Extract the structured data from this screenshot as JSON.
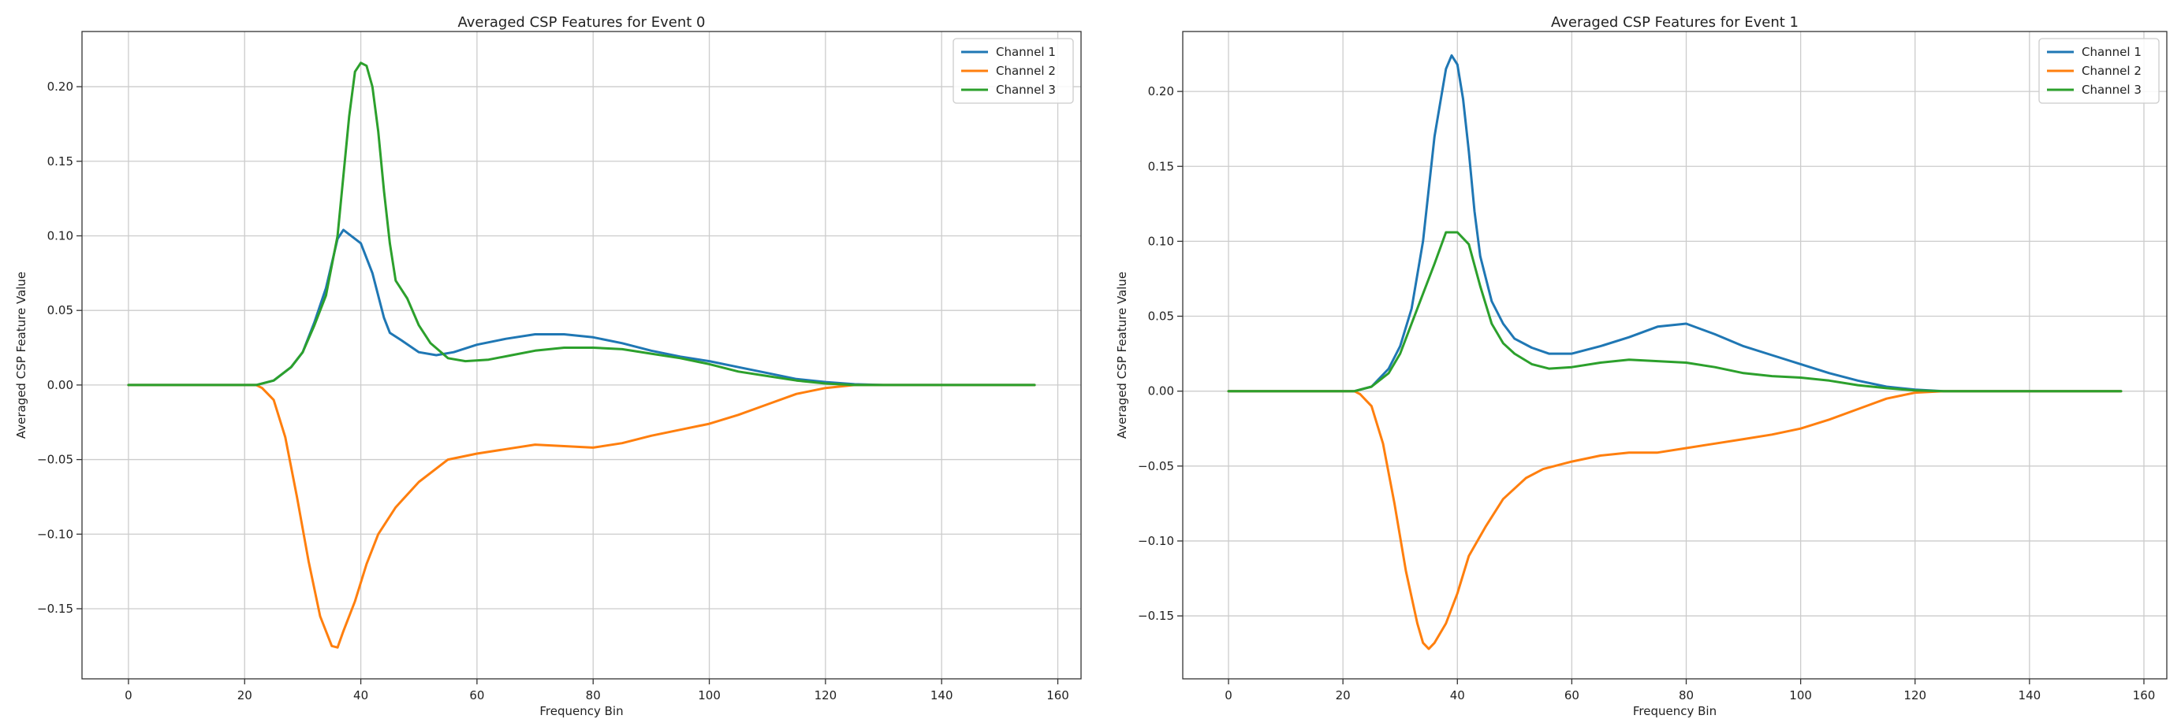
{
  "colors": {
    "channel1": "#1f77b4",
    "channel2": "#ff7f0e",
    "channel3": "#2ca02c"
  },
  "chart_data": [
    {
      "type": "line",
      "title": "Averaged CSP Features for Event 0",
      "xlabel": "Frequency Bin",
      "ylabel": "Averaged CSP Feature Value",
      "xlim": [
        -8,
        164
      ],
      "ylim": [
        -0.197,
        0.237
      ],
      "xticks": [
        0,
        20,
        40,
        60,
        80,
        100,
        120,
        140,
        160
      ],
      "yticks": [
        -0.15,
        -0.1,
        -0.05,
        0.0,
        0.05,
        0.1,
        0.15,
        0.2
      ],
      "yticklabels": [
        "−0.15",
        "−0.10",
        "−0.05",
        "0.00",
        "0.05",
        "0.10",
        "0.15",
        "0.20"
      ],
      "grid": true,
      "legend_position": "top-right",
      "series": [
        {
          "name": "Channel 1",
          "color": "#1f77b4",
          "points": [
            [
              0,
              0
            ],
            [
              22,
              0
            ],
            [
              25,
              0.003
            ],
            [
              28,
              0.012
            ],
            [
              30,
              0.022
            ],
            [
              32,
              0.042
            ],
            [
              34,
              0.065
            ],
            [
              36,
              0.098
            ],
            [
              37,
              0.104
            ],
            [
              38,
              0.101
            ],
            [
              40,
              0.095
            ],
            [
              42,
              0.075
            ],
            [
              44,
              0.045
            ],
            [
              45,
              0.035
            ],
            [
              47,
              0.03
            ],
            [
              50,
              0.022
            ],
            [
              53,
              0.02
            ],
            [
              56,
              0.022
            ],
            [
              60,
              0.027
            ],
            [
              65,
              0.031
            ],
            [
              70,
              0.034
            ],
            [
              75,
              0.034
            ],
            [
              80,
              0.032
            ],
            [
              85,
              0.028
            ],
            [
              90,
              0.023
            ],
            [
              95,
              0.019
            ],
            [
              100,
              0.016
            ],
            [
              105,
              0.012
            ],
            [
              110,
              0.008
            ],
            [
              115,
              0.004
            ],
            [
              120,
              0.002
            ],
            [
              125,
              0.0005
            ],
            [
              130,
              0
            ],
            [
              156,
              0
            ]
          ]
        },
        {
          "name": "Channel 2",
          "color": "#ff7f0e",
          "points": [
            [
              0,
              0
            ],
            [
              22,
              0
            ],
            [
              23,
              -0.002
            ],
            [
              25,
              -0.01
            ],
            [
              27,
              -0.035
            ],
            [
              29,
              -0.075
            ],
            [
              31,
              -0.118
            ],
            [
              33,
              -0.155
            ],
            [
              35,
              -0.175
            ],
            [
              36,
              -0.176
            ],
            [
              37,
              -0.165
            ],
            [
              39,
              -0.145
            ],
            [
              41,
              -0.12
            ],
            [
              43,
              -0.1
            ],
            [
              46,
              -0.082
            ],
            [
              50,
              -0.065
            ],
            [
              55,
              -0.05
            ],
            [
              60,
              -0.046
            ],
            [
              65,
              -0.043
            ],
            [
              70,
              -0.04
            ],
            [
              75,
              -0.041
            ],
            [
              80,
              -0.042
            ],
            [
              85,
              -0.039
            ],
            [
              90,
              -0.034
            ],
            [
              95,
              -0.03
            ],
            [
              100,
              -0.026
            ],
            [
              105,
              -0.02
            ],
            [
              110,
              -0.013
            ],
            [
              115,
              -0.006
            ],
            [
              120,
              -0.002
            ],
            [
              125,
              0
            ],
            [
              156,
              0
            ]
          ]
        },
        {
          "name": "Channel 3",
          "color": "#2ca02c",
          "points": [
            [
              0,
              0
            ],
            [
              22,
              0
            ],
            [
              25,
              0.003
            ],
            [
              28,
              0.012
            ],
            [
              30,
              0.022
            ],
            [
              32,
              0.04
            ],
            [
              34,
              0.06
            ],
            [
              36,
              0.1
            ],
            [
              38,
              0.18
            ],
            [
              39,
              0.21
            ],
            [
              40,
              0.216
            ],
            [
              41,
              0.214
            ],
            [
              42,
              0.2
            ],
            [
              43,
              0.17
            ],
            [
              44,
              0.13
            ],
            [
              45,
              0.095
            ],
            [
              46,
              0.07
            ],
            [
              48,
              0.058
            ],
            [
              50,
              0.04
            ],
            [
              52,
              0.028
            ],
            [
              55,
              0.018
            ],
            [
              58,
              0.016
            ],
            [
              62,
              0.017
            ],
            [
              66,
              0.02
            ],
            [
              70,
              0.023
            ],
            [
              75,
              0.025
            ],
            [
              80,
              0.025
            ],
            [
              85,
              0.024
            ],
            [
              90,
              0.021
            ],
            [
              95,
              0.018
            ],
            [
              100,
              0.014
            ],
            [
              105,
              0.009
            ],
            [
              110,
              0.006
            ],
            [
              115,
              0.003
            ],
            [
              120,
              0.001
            ],
            [
              125,
              0
            ],
            [
              156,
              0
            ]
          ]
        }
      ]
    },
    {
      "type": "line",
      "title": "Averaged CSP Features for Event 1",
      "xlabel": "Frequency Bin",
      "ylabel": "Averaged CSP Feature Value",
      "xlim": [
        -8,
        164
      ],
      "ylim": [
        -0.192,
        0.24
      ],
      "xticks": [
        0,
        20,
        40,
        60,
        80,
        100,
        120,
        140,
        160
      ],
      "yticks": [
        -0.15,
        -0.1,
        -0.05,
        0.0,
        0.05,
        0.1,
        0.15,
        0.2
      ],
      "yticklabels": [
        "−0.15",
        "−0.10",
        "−0.05",
        "0.00",
        "0.05",
        "0.10",
        "0.15",
        "0.20"
      ],
      "grid": true,
      "legend_position": "top-right",
      "series": [
        {
          "name": "Channel 1",
          "color": "#1f77b4",
          "points": [
            [
              0,
              0
            ],
            [
              22,
              0
            ],
            [
              25,
              0.003
            ],
            [
              28,
              0.015
            ],
            [
              30,
              0.03
            ],
            [
              32,
              0.055
            ],
            [
              34,
              0.1
            ],
            [
              36,
              0.17
            ],
            [
              38,
              0.215
            ],
            [
              39,
              0.224
            ],
            [
              40,
              0.218
            ],
            [
              41,
              0.195
            ],
            [
              42,
              0.16
            ],
            [
              43,
              0.12
            ],
            [
              44,
              0.09
            ],
            [
              46,
              0.06
            ],
            [
              48,
              0.045
            ],
            [
              50,
              0.035
            ],
            [
              53,
              0.029
            ],
            [
              56,
              0.025
            ],
            [
              60,
              0.025
            ],
            [
              65,
              0.03
            ],
            [
              70,
              0.036
            ],
            [
              75,
              0.043
            ],
            [
              80,
              0.045
            ],
            [
              85,
              0.038
            ],
            [
              90,
              0.03
            ],
            [
              95,
              0.024
            ],
            [
              100,
              0.018
            ],
            [
              105,
              0.012
            ],
            [
              110,
              0.007
            ],
            [
              115,
              0.003
            ],
            [
              120,
              0.001
            ],
            [
              125,
              0
            ],
            [
              156,
              0
            ]
          ]
        },
        {
          "name": "Channel 2",
          "color": "#ff7f0e",
          "points": [
            [
              0,
              0
            ],
            [
              22,
              0
            ],
            [
              23,
              -0.002
            ],
            [
              25,
              -0.01
            ],
            [
              27,
              -0.035
            ],
            [
              29,
              -0.075
            ],
            [
              31,
              -0.12
            ],
            [
              33,
              -0.155
            ],
            [
              34,
              -0.168
            ],
            [
              35,
              -0.172
            ],
            [
              36,
              -0.168
            ],
            [
              38,
              -0.155
            ],
            [
              40,
              -0.135
            ],
            [
              42,
              -0.11
            ],
            [
              45,
              -0.09
            ],
            [
              48,
              -0.072
            ],
            [
              52,
              -0.058
            ],
            [
              55,
              -0.052
            ],
            [
              60,
              -0.047
            ],
            [
              65,
              -0.043
            ],
            [
              70,
              -0.041
            ],
            [
              75,
              -0.041
            ],
            [
              80,
              -0.038
            ],
            [
              85,
              -0.035
            ],
            [
              90,
              -0.032
            ],
            [
              95,
              -0.029
            ],
            [
              100,
              -0.025
            ],
            [
              105,
              -0.019
            ],
            [
              110,
              -0.012
            ],
            [
              115,
              -0.005
            ],
            [
              120,
              -0.001
            ],
            [
              125,
              0
            ],
            [
              156,
              0
            ]
          ]
        },
        {
          "name": "Channel 3",
          "color": "#2ca02c",
          "points": [
            [
              0,
              0
            ],
            [
              22,
              0
            ],
            [
              25,
              0.003
            ],
            [
              28,
              0.012
            ],
            [
              30,
              0.025
            ],
            [
              32,
              0.045
            ],
            [
              34,
              0.065
            ],
            [
              36,
              0.085
            ],
            [
              38,
              0.106
            ],
            [
              40,
              0.106
            ],
            [
              42,
              0.098
            ],
            [
              44,
              0.07
            ],
            [
              46,
              0.045
            ],
            [
              48,
              0.032
            ],
            [
              50,
              0.025
            ],
            [
              53,
              0.018
            ],
            [
              56,
              0.015
            ],
            [
              60,
              0.016
            ],
            [
              65,
              0.019
            ],
            [
              70,
              0.021
            ],
            [
              75,
              0.02
            ],
            [
              80,
              0.019
            ],
            [
              85,
              0.016
            ],
            [
              90,
              0.012
            ],
            [
              95,
              0.01
            ],
            [
              100,
              0.009
            ],
            [
              105,
              0.007
            ],
            [
              110,
              0.004
            ],
            [
              115,
              0.002
            ],
            [
              120,
              0.0005
            ],
            [
              125,
              0
            ],
            [
              156,
              0
            ]
          ]
        }
      ]
    }
  ]
}
